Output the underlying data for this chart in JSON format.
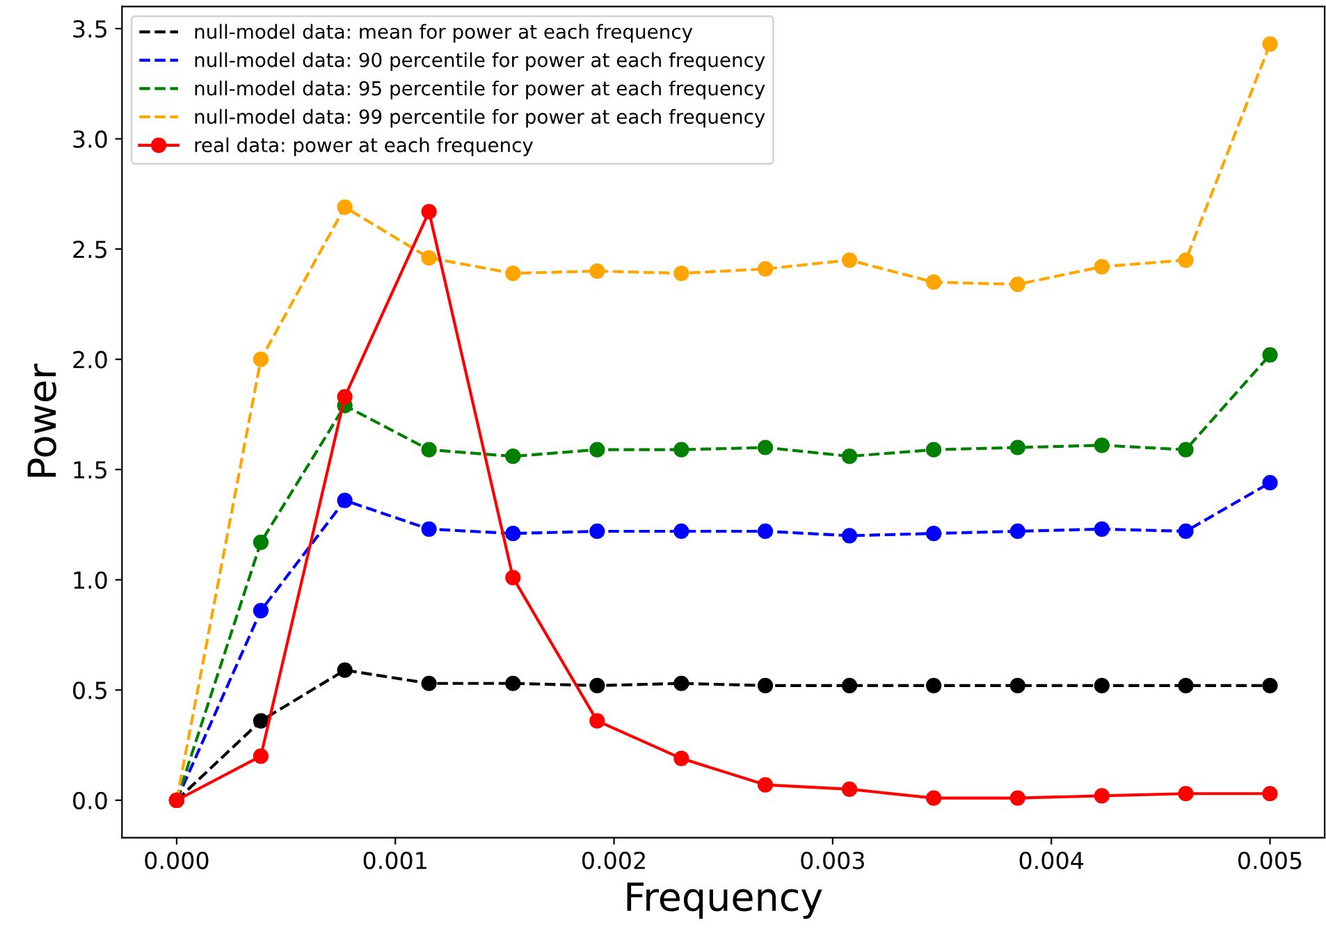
{
  "chart_data": {
    "type": "line",
    "xlabel": "Frequency",
    "ylabel": "Power",
    "x": [
      0,
      0.000385,
      0.000769,
      0.001154,
      0.001538,
      0.001923,
      0.002308,
      0.002692,
      0.003077,
      0.003462,
      0.003846,
      0.004231,
      0.004615,
      0.005
    ],
    "xlim": [
      -0.00025,
      0.00525
    ],
    "xticks": [
      {
        "value": 0,
        "label": "0.000"
      },
      {
        "value": 0.001,
        "label": "0.001"
      },
      {
        "value": 0.002,
        "label": "0.002"
      },
      {
        "value": 0.003,
        "label": "0.003"
      },
      {
        "value": 0.004,
        "label": "0.004"
      },
      {
        "value": 0.005,
        "label": "0.005"
      }
    ],
    "ylim": [
      -0.17,
      3.6
    ],
    "yticks": [
      {
        "value": 0,
        "label": "0.0"
      },
      {
        "value": 0.5,
        "label": "0.5"
      },
      {
        "value": 1,
        "label": "1.0"
      },
      {
        "value": 1.5,
        "label": "1.5"
      },
      {
        "value": 2,
        "label": "2.0"
      },
      {
        "value": 2.5,
        "label": "2.5"
      },
      {
        "value": 3,
        "label": "3.0"
      },
      {
        "value": 3.5,
        "label": "3.5"
      }
    ],
    "grid": false,
    "legend": "top left",
    "marker": "circle",
    "series": [
      {
        "name": "null-model data: mean for power at each frequency",
        "color": "#000000",
        "line_style": "dashed",
        "values": [
          0,
          0.36,
          0.59,
          0.53,
          0.53,
          0.52,
          0.53,
          0.52,
          0.52,
          0.52,
          0.52,
          0.52,
          0.52,
          0.52
        ]
      },
      {
        "name": "null-model data: 90 percentile for power at each frequency",
        "color": "#0000ff",
        "line_style": "dashed",
        "values": [
          0,
          0.86,
          1.36,
          1.23,
          1.21,
          1.22,
          1.22,
          1.22,
          1.2,
          1.21,
          1.22,
          1.23,
          1.22,
          1.44
        ]
      },
      {
        "name": "null-model data: 95 percentile for power at each frequency",
        "color": "#008000",
        "line_style": "dashed",
        "values": [
          0,
          1.17,
          1.79,
          1.59,
          1.56,
          1.59,
          1.59,
          1.6,
          1.56,
          1.59,
          1.6,
          1.61,
          1.59,
          2.02
        ]
      },
      {
        "name": "null-model data: 99 percentile for power at each frequency",
        "color": "#ffa500",
        "line_style": "dashed",
        "values": [
          0,
          2.0,
          2.69,
          2.46,
          2.39,
          2.4,
          2.39,
          2.41,
          2.45,
          2.35,
          2.34,
          2.42,
          2.45,
          3.43
        ]
      },
      {
        "name": "real data: power at each frequency",
        "color": "#ff0000",
        "line_style": "solid",
        "values": [
          0,
          0.2,
          1.83,
          2.67,
          1.01,
          0.36,
          0.19,
          0.07,
          0.05,
          0.01,
          0.01,
          0.02,
          0.03,
          0.03
        ]
      }
    ]
  }
}
